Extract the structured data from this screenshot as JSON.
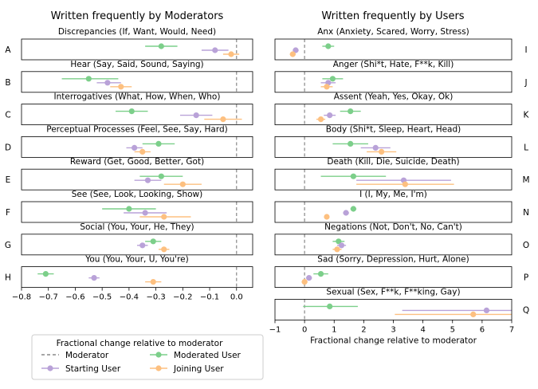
{
  "chart_data": {
    "type": "scatter",
    "series_names": [
      "Moderated User",
      "Starting User",
      "Joining User"
    ],
    "colors": {
      "Moderated User": "#7ccf8a",
      "Starting User": "#b9a2d8",
      "Joining User": "#fdc080",
      "Moderator": "#888888"
    },
    "legend": {
      "placement": "bottom-left",
      "title": "Fractional change relative to moderator",
      "entries": [
        "Moderator",
        "Starting User",
        "Moderated User",
        "Joining User"
      ]
    },
    "panels": [
      {
        "column": "left",
        "column_title": "Written frequently by Moderators",
        "xlabel": "",
        "xlim": [
          -0.8,
          0.06
        ],
        "xticks": [
          -0.8,
          -0.7,
          -0.6,
          -0.5,
          -0.4,
          -0.3,
          -0.2,
          -0.1,
          0.0
        ],
        "xtick_labels": [
          "−0.8",
          "−0.7",
          "−0.6",
          "−0.5",
          "−0.4",
          "−0.3",
          "−0.2",
          "−0.1",
          "0.0"
        ],
        "moderator_line": 0,
        "categories": [
          {
            "letter": "A",
            "title": "Discrepancies (If, Want, Would, Need)",
            "points": [
              {
                "series": "Moderated User",
                "x": -0.28,
                "lo": -0.34,
                "hi": -0.22
              },
              {
                "series": "Starting User",
                "x": -0.08,
                "lo": -0.13,
                "hi": -0.03
              },
              {
                "series": "Joining User",
                "x": -0.02,
                "lo": -0.05,
                "hi": 0.01
              }
            ]
          },
          {
            "letter": "B",
            "title": "Hear (Say, Said, Sound, Saying)",
            "points": [
              {
                "series": "Moderated User",
                "x": -0.55,
                "lo": -0.65,
                "hi": -0.44
              },
              {
                "series": "Starting User",
                "x": -0.48,
                "lo": -0.52,
                "hi": -0.43
              },
              {
                "series": "Joining User",
                "x": -0.43,
                "lo": -0.47,
                "hi": -0.39
              }
            ]
          },
          {
            "letter": "C",
            "title": "Interrogatives (What, How, When, Who)",
            "points": [
              {
                "series": "Moderated User",
                "x": -0.39,
                "lo": -0.45,
                "hi": -0.33
              },
              {
                "series": "Starting User",
                "x": -0.15,
                "lo": -0.21,
                "hi": -0.09
              },
              {
                "series": "Joining User",
                "x": -0.05,
                "lo": -0.12,
                "hi": 0.02
              }
            ]
          },
          {
            "letter": "D",
            "title": "Perceptual Processes (Feel, See, Say, Hard)",
            "points": [
              {
                "series": "Moderated User",
                "x": -0.29,
                "lo": -0.35,
                "hi": -0.23
              },
              {
                "series": "Starting User",
                "x": -0.38,
                "lo": -0.41,
                "hi": -0.35
              },
              {
                "series": "Joining User",
                "x": -0.35,
                "lo": -0.38,
                "hi": -0.32
              }
            ]
          },
          {
            "letter": "E",
            "title": "Reward (Get, Good, Better, Got)",
            "points": [
              {
                "series": "Moderated User",
                "x": -0.28,
                "lo": -0.36,
                "hi": -0.2
              },
              {
                "series": "Starting User",
                "x": -0.33,
                "lo": -0.38,
                "hi": -0.28
              },
              {
                "series": "Joining User",
                "x": -0.2,
                "lo": -0.27,
                "hi": -0.13
              }
            ]
          },
          {
            "letter": "F",
            "title": "See (See, Look, Looking, Show)",
            "points": [
              {
                "series": "Moderated User",
                "x": -0.4,
                "lo": -0.5,
                "hi": -0.3
              },
              {
                "series": "Starting User",
                "x": -0.34,
                "lo": -0.42,
                "hi": -0.26
              },
              {
                "series": "Joining User",
                "x": -0.27,
                "lo": -0.36,
                "hi": -0.17
              }
            ]
          },
          {
            "letter": "G",
            "title": "Social (You, Your, He, They)",
            "points": [
              {
                "series": "Moderated User",
                "x": -0.31,
                "lo": -0.34,
                "hi": -0.28
              },
              {
                "series": "Starting User",
                "x": -0.35,
                "lo": -0.37,
                "hi": -0.33
              },
              {
                "series": "Joining User",
                "x": -0.27,
                "lo": -0.29,
                "hi": -0.25
              }
            ]
          },
          {
            "letter": "H",
            "title": "You (You, Your, U, You're)",
            "points": [
              {
                "series": "Moderated User",
                "x": -0.71,
                "lo": -0.74,
                "hi": -0.68
              },
              {
                "series": "Starting User",
                "x": -0.53,
                "lo": -0.55,
                "hi": -0.51
              },
              {
                "series": "Joining User",
                "x": -0.31,
                "lo": -0.34,
                "hi": -0.28
              }
            ]
          }
        ]
      },
      {
        "column": "right",
        "column_title": "Written frequently by Users",
        "xlabel": "Fractional change relative to moderator",
        "xlim": [
          -1,
          7
        ],
        "xticks": [
          -1,
          0,
          1,
          2,
          3,
          4,
          5,
          6,
          7
        ],
        "xtick_labels": [
          "−1",
          "0",
          "1",
          "2",
          "3",
          "4",
          "5",
          "6",
          "7"
        ],
        "moderator_line": 0,
        "categories": [
          {
            "letter": "I",
            "title": "Anx (Anxiety, Scared, Worry, Stress)",
            "points": [
              {
                "series": "Moderated User",
                "x": 0.8,
                "lo": 0.6,
                "hi": 1.0
              },
              {
                "series": "Starting User",
                "x": -0.3,
                "lo": -0.4,
                "hi": -0.2
              },
              {
                "series": "Joining User",
                "x": -0.4,
                "lo": -0.5,
                "hi": -0.3
              }
            ]
          },
          {
            "letter": "J",
            "title": "Anger (Shi*t, Hate, F**k, Kill)",
            "points": [
              {
                "series": "Moderated User",
                "x": 0.95,
                "lo": 0.6,
                "hi": 1.3
              },
              {
                "series": "Starting User",
                "x": 0.8,
                "lo": 0.55,
                "hi": 1.05
              },
              {
                "series": "Joining User",
                "x": 0.75,
                "lo": 0.55,
                "hi": 0.95
              }
            ]
          },
          {
            "letter": "K",
            "title": "Assent (Yeah, Yes, Okay, Ok)",
            "points": [
              {
                "series": "Moderated User",
                "x": 1.55,
                "lo": 1.2,
                "hi": 1.9
              },
              {
                "series": "Starting User",
                "x": 0.85,
                "lo": 0.65,
                "hi": 1.05
              },
              {
                "series": "Joining User",
                "x": 0.55,
                "lo": 0.4,
                "hi": 0.7
              }
            ]
          },
          {
            "letter": "L",
            "title": "Body (Shi*t, Sleep, Heart, Head)",
            "points": [
              {
                "series": "Moderated User",
                "x": 1.55,
                "lo": 0.95,
                "hi": 2.15
              },
              {
                "series": "Starting User",
                "x": 2.4,
                "lo": 1.9,
                "hi": 2.9
              },
              {
                "series": "Joining User",
                "x": 2.6,
                "lo": 2.1,
                "hi": 3.1
              }
            ]
          },
          {
            "letter": "M",
            "title": "Death (Kill, Die, Suicide, Death)",
            "points": [
              {
                "series": "Moderated User",
                "x": 1.65,
                "lo": 0.55,
                "hi": 2.75
              },
              {
                "series": "Starting User",
                "x": 3.35,
                "lo": 1.75,
                "hi": 4.95
              },
              {
                "series": "Joining User",
                "x": 3.4,
                "lo": 1.75,
                "hi": 5.05
              }
            ]
          },
          {
            "letter": "N",
            "title": "I (I, My, Me, I'm)",
            "points": [
              {
                "series": "Moderated User",
                "x": 1.65,
                "lo": 1.55,
                "hi": 1.75
              },
              {
                "series": "Starting User",
                "x": 1.4,
                "lo": 1.3,
                "hi": 1.5
              },
              {
                "series": "Joining User",
                "x": 0.75,
                "lo": 0.7,
                "hi": 0.8
              }
            ]
          },
          {
            "letter": "O",
            "title": "Negations (Not, Don't, No, Can't)",
            "points": [
              {
                "series": "Moderated User",
                "x": 1.15,
                "lo": 0.95,
                "hi": 1.35
              },
              {
                "series": "Starting User",
                "x": 1.25,
                "lo": 1.1,
                "hi": 1.4
              },
              {
                "series": "Joining User",
                "x": 1.1,
                "lo": 0.95,
                "hi": 1.25
              }
            ]
          },
          {
            "letter": "P",
            "title": "Sad (Sorry, Depression, Hurt, Alone)",
            "points": [
              {
                "series": "Moderated User",
                "x": 0.55,
                "lo": 0.3,
                "hi": 0.8
              },
              {
                "series": "Starting User",
                "x": 0.15,
                "lo": 0.05,
                "hi": 0.25
              },
              {
                "series": "Joining User",
                "x": 0.0,
                "lo": -0.1,
                "hi": 0.1
              }
            ]
          },
          {
            "letter": "Q",
            "title": "Sexual (Sex, F**k, F**king, Gay)",
            "points": [
              {
                "series": "Moderated User",
                "x": 0.85,
                "lo": -0.05,
                "hi": 1.8
              },
              {
                "series": "Starting User",
                "x": 6.15,
                "lo": 3.3,
                "hi": 7.0
              },
              {
                "series": "Joining User",
                "x": 5.7,
                "lo": 3.05,
                "hi": 7.0
              }
            ]
          }
        ]
      }
    ]
  }
}
